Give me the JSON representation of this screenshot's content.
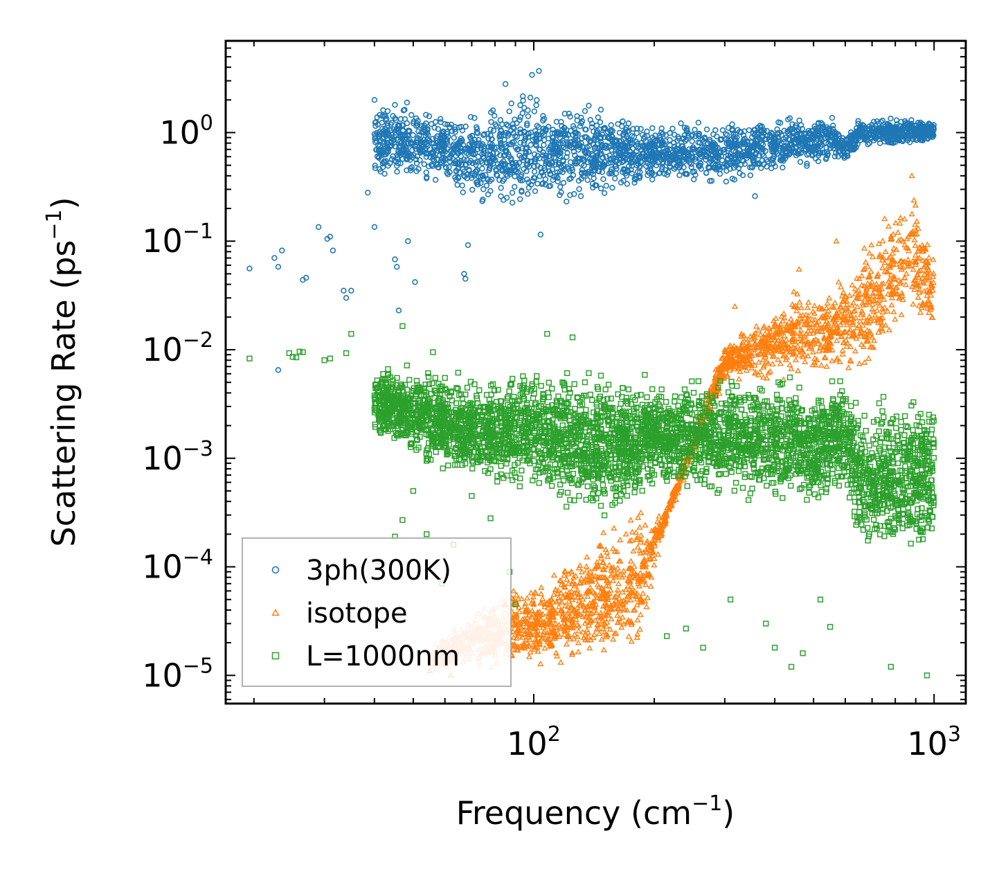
{
  "chart_data": {
    "type": "scatter",
    "title": "",
    "xlabel": "Frequency (cm",
    "xlabel_sup": "−1",
    "xlabel_end": ")",
    "ylabel": "Scattering Rate (ps",
    "ylabel_sup": "−1",
    "ylabel_end": ")",
    "xscale": "log",
    "yscale": "log",
    "xlim": [
      17,
      1200
    ],
    "ylim": [
      5.5e-06,
      7
    ],
    "x_ticks": [
      {
        "value": 100,
        "base": "10",
        "exp": "2"
      },
      {
        "value": 1000,
        "base": "10",
        "exp": "3"
      }
    ],
    "y_ticks": [
      {
        "value": 1e-05,
        "base": "10",
        "exp": "−5"
      },
      {
        "value": 0.0001,
        "base": "10",
        "exp": "−4"
      },
      {
        "value": 0.001,
        "base": "10",
        "exp": "−3"
      },
      {
        "value": 0.01,
        "base": "10",
        "exp": "−2"
      },
      {
        "value": 0.1,
        "base": "10",
        "exp": "−1"
      },
      {
        "value": 1,
        "base": "10",
        "exp": "0"
      }
    ],
    "legend_position": "lower-left",
    "series": [
      {
        "name": "3ph(300K)",
        "marker": "circle",
        "color": "#1f77b4",
        "envelope": [
          [
            40,
            0.35,
            2.2
          ],
          [
            55,
            0.3,
            2.0
          ],
          [
            70,
            0.2,
            1.6
          ],
          [
            90,
            0.15,
            3.0
          ],
          [
            110,
            0.2,
            2.5
          ],
          [
            150,
            0.25,
            1.8
          ],
          [
            200,
            0.3,
            1.3
          ],
          [
            300,
            0.3,
            1.5
          ],
          [
            400,
            0.4,
            1.4
          ],
          [
            550,
            0.5,
            1.6
          ],
          [
            600,
            0.5,
            1.0
          ],
          [
            650,
            0.7,
            1.4
          ],
          [
            800,
            0.7,
            1.5
          ],
          [
            1000,
            0.8,
            1.3
          ]
        ],
        "points": [
          [
            19.5,
            0.056
          ],
          [
            22.5,
            0.07
          ],
          [
            23,
            0.058
          ],
          [
            23.5,
            0.082
          ],
          [
            26.5,
            0.044
          ],
          [
            27,
            0.046
          ],
          [
            29,
            0.135
          ],
          [
            30.5,
            0.105
          ],
          [
            31,
            0.11
          ],
          [
            31.5,
            0.082
          ],
          [
            33.5,
            0.035
          ],
          [
            34,
            0.03
          ],
          [
            35,
            0.035
          ],
          [
            38.5,
            0.28
          ],
          [
            40,
            0.135
          ],
          [
            42,
            0.48
          ],
          [
            45,
            0.068
          ],
          [
            45.5,
            0.058
          ],
          [
            48.5,
            0.1
          ],
          [
            50.5,
            0.042
          ],
          [
            67,
            0.05
          ],
          [
            67.5,
            0.045
          ],
          [
            68.5,
            0.092
          ],
          [
            104,
            0.115
          ],
          [
            23,
            0.0065
          ],
          [
            46,
            0.023
          ],
          [
            357,
            0.26
          ],
          [
            99,
            3.4
          ],
          [
            103,
            3.7
          ],
          [
            40,
            2.0
          ],
          [
            45,
            1.8
          ],
          [
            60,
            1.2
          ],
          [
            85,
            2.8
          ]
        ]
      },
      {
        "name": "isotope",
        "marker": "triangle",
        "color": "#ff7f0e",
        "envelope": [
          [
            55,
            1.1e-05,
            1.8e-05
          ],
          [
            70,
            1e-05,
            4e-05
          ],
          [
            90,
            1e-05,
            8e-05
          ],
          [
            110,
            1e-05,
            0.0001
          ],
          [
            140,
            1.2e-05,
            0.0002
          ],
          [
            180,
            1e-05,
            0.0005
          ],
          [
            210,
            0.0002,
            0.0003
          ],
          [
            300,
            0.005,
            0.012
          ],
          [
            360,
            0.005,
            0.02
          ],
          [
            450,
            0.005,
            0.04
          ],
          [
            600,
            0.005,
            0.06
          ],
          [
            650,
            0.004,
            0.1
          ],
          [
            800,
            0.01,
            0.3
          ],
          [
            870,
            0.02,
            0.4
          ],
          [
            1000,
            0.01,
            0.1
          ]
        ],
        "points": [
          [
            55,
            1.1e-05
          ],
          [
            62,
            1e-05
          ],
          [
            85,
            4.5e-05
          ],
          [
            120,
            9e-05
          ],
          [
            170,
            0.0002
          ],
          [
            318,
            0.025
          ],
          [
            460,
            0.055
          ],
          [
            570,
            0.1
          ],
          [
            880,
            0.4
          ],
          [
            300,
            0.009
          ],
          [
            650,
            0.045
          ]
        ]
      },
      {
        "name": "L=1000nm",
        "marker": "square",
        "color": "#2ca02c",
        "envelope": [
          [
            40,
            0.0015,
            0.008
          ],
          [
            50,
            0.0008,
            0.008
          ],
          [
            70,
            0.0005,
            0.006
          ],
          [
            100,
            0.0004,
            0.008
          ],
          [
            150,
            0.00025,
            0.007
          ],
          [
            200,
            0.0004,
            0.006
          ],
          [
            300,
            0.0004,
            0.007
          ],
          [
            400,
            0.0003,
            0.007
          ],
          [
            500,
            0.0003,
            0.006
          ],
          [
            600,
            0.0004,
            0.007
          ],
          [
            650,
            0.0001,
            0.004
          ],
          [
            800,
            0.0001,
            0.005
          ],
          [
            1000,
            0.0001,
            0.005
          ]
        ],
        "points": [
          [
            19.5,
            0.0083
          ],
          [
            24.5,
            0.0093
          ],
          [
            25,
            0.0086
          ],
          [
            25.5,
            0.0085
          ],
          [
            26,
            0.0096
          ],
          [
            26.5,
            0.0095
          ],
          [
            30,
            0.008
          ],
          [
            31,
            0.0083
          ],
          [
            34,
            0.0093
          ],
          [
            35,
            0.014
          ],
          [
            47,
            0.0165
          ],
          [
            56,
            0.0095
          ],
          [
            60,
            0.0055
          ],
          [
            50,
            0.0005
          ],
          [
            54,
            0.0002
          ],
          [
            59,
            7e-05
          ],
          [
            63,
            0.00016
          ],
          [
            70,
            0.00045
          ],
          [
            78,
            0.00028
          ],
          [
            87,
            9e-05
          ],
          [
            90,
            4.5e-05
          ],
          [
            108,
            0.014
          ],
          [
            125,
            0.013
          ],
          [
            215,
            2.3e-05
          ],
          [
            240,
            2.7e-05
          ],
          [
            265,
            1.8e-05
          ],
          [
            310,
            5e-05
          ],
          [
            380,
            3e-05
          ],
          [
            400,
            1.8e-05
          ],
          [
            440,
            1.2e-05
          ],
          [
            470,
            1.6e-05
          ],
          [
            520,
            5e-05
          ],
          [
            550,
            2.8e-05
          ],
          [
            780,
            1.2e-05
          ],
          [
            960,
            1e-05
          ],
          [
            47,
            0.00027
          ],
          [
            45,
            0.00019
          ]
        ]
      }
    ]
  }
}
